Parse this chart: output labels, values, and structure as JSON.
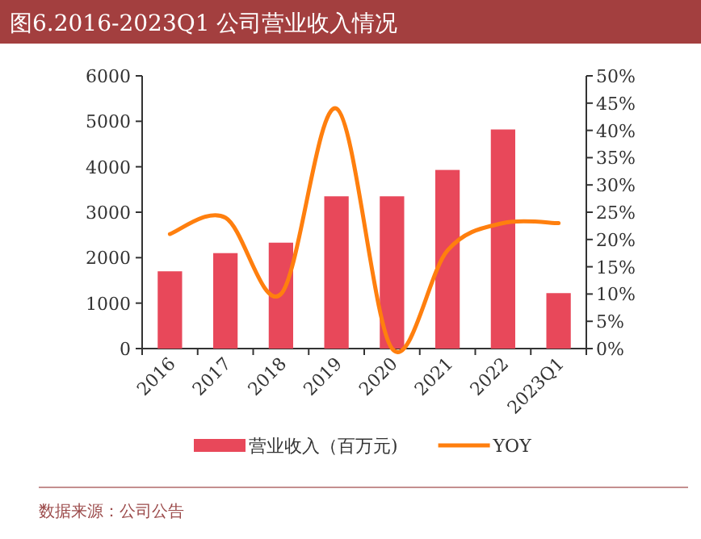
{
  "chart_data": {
    "type": "bar",
    "title": "图6.2016-2023Q1 公司营业收入情况",
    "categories": [
      "2016",
      "2017",
      "2018",
      "2019",
      "2020",
      "2021",
      "2022",
      "2023Q1"
    ],
    "series": [
      {
        "name": "营业收入（百万元)",
        "color": "#e8485a",
        "values": [
          1700,
          2100,
          2330,
          3350,
          3350,
          3930,
          4820,
          1220
        ]
      },
      {
        "name": "YOY",
        "type": "line",
        "axis": "y2",
        "color": "#ff7f0e",
        "values": [
          21,
          24,
          10,
          44,
          0,
          18,
          23,
          23
        ]
      }
    ],
    "ylim": [
      0,
      6000
    ],
    "yticks": [
      0,
      1000,
      2000,
      3000,
      4000,
      5000,
      6000
    ],
    "y2lim": [
      0,
      50
    ],
    "y2ticks": [
      {
        "value": 0,
        "label": "0%"
      },
      {
        "value": 5,
        "label": "5%"
      },
      {
        "value": 10,
        "label": "10%"
      },
      {
        "value": 15,
        "label": "15%"
      },
      {
        "value": 20,
        "label": "20%"
      },
      {
        "value": 25,
        "label": "25%"
      },
      {
        "value": 30,
        "label": "30%"
      },
      {
        "value": 35,
        "label": "35%"
      },
      {
        "value": 40,
        "label": "40%"
      },
      {
        "value": 45,
        "label": "45%"
      },
      {
        "value": 50,
        "label": "50%"
      }
    ],
    "legend": "bottom",
    "annotations": [
      "数据来源：公司公告"
    ]
  }
}
